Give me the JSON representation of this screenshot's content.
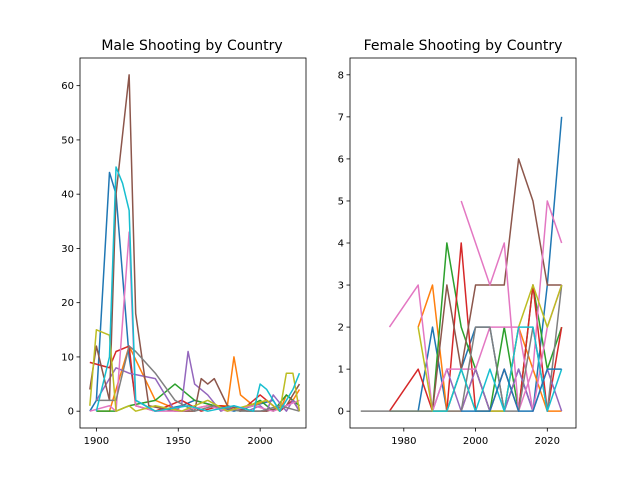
{
  "chart_data": [
    {
      "type": "line",
      "title": "Male Shooting by Country",
      "xlabel": "",
      "ylabel": "",
      "xlim": [
        1890,
        2028
      ],
      "ylim": [
        -3.1,
        65.1
      ],
      "xticks": [
        1900,
        1950,
        2000
      ],
      "yticks": [
        0,
        10,
        20,
        30,
        40,
        50,
        60
      ],
      "grid": false,
      "series": [
        {
          "color": "#1f77b4",
          "x": [
            1896,
            1900,
            1908,
            1912,
            1920,
            1924,
            1936,
            1952,
            1960,
            1972,
            1984,
            1996,
            2008,
            2012,
            2016,
            2020,
            2024
          ],
          "y": [
            0,
            2,
            44,
            40,
            10,
            2,
            0,
            1,
            2,
            1,
            0,
            1,
            2,
            0,
            1,
            2,
            1
          ]
        },
        {
          "color": "#ff7f0e",
          "x": [
            1900,
            1908,
            1920,
            1936,
            1952,
            1968,
            1980,
            1984,
            1988,
            1996,
            2004,
            2012,
            2016,
            2020,
            2024
          ],
          "y": [
            0,
            0,
            12,
            2,
            0,
            1,
            1,
            10,
            3,
            1,
            2,
            0,
            3,
            2,
            4
          ]
        },
        {
          "color": "#2ca02c",
          "x": [
            1900,
            1912,
            1920,
            1936,
            1948,
            1960,
            1972,
            1988,
            2000,
            2008,
            2016,
            2024
          ],
          "y": [
            0,
            0,
            1,
            2,
            5,
            2,
            1,
            0,
            2,
            0,
            3,
            1
          ]
        },
        {
          "color": "#d62728",
          "x": [
            1896,
            1908,
            1912,
            1920,
            1924,
            1936,
            1952,
            1964,
            1976,
            1988,
            2000,
            2012,
            2020,
            2024
          ],
          "y": [
            9,
            8,
            11,
            12,
            1,
            0,
            2,
            0,
            1,
            0,
            3,
            0,
            2,
            0
          ]
        },
        {
          "color": "#9467bd",
          "x": [
            1900,
            1912,
            1920,
            1936,
            1948,
            1952,
            1956,
            1960,
            1968,
            1976,
            1984,
            1992,
            2000,
            2004,
            2008,
            2016,
            2020,
            2024
          ],
          "y": [
            2,
            8,
            7,
            6,
            0,
            1,
            11,
            5,
            3,
            0,
            1,
            0,
            1,
            0,
            3,
            0,
            2,
            0
          ]
        },
        {
          "color": "#8c564b",
          "x": [
            1896,
            1900,
            1908,
            1912,
            1920,
            1924,
            1932,
            1948,
            1960,
            1964,
            1968,
            1972,
            1980,
            1992,
            2004,
            2016,
            2020,
            2024
          ],
          "y": [
            4,
            12,
            2,
            40,
            62,
            18,
            1,
            0,
            0,
            6,
            5,
            6,
            1,
            0,
            0,
            1,
            3,
            5
          ]
        },
        {
          "color": "#e377c2",
          "x": [
            1896,
            1908,
            1912,
            1920,
            1924,
            1936,
            1952,
            1968,
            1980,
            1996,
            2008,
            2024
          ],
          "y": [
            0,
            1,
            0,
            33,
            1,
            0,
            0,
            1,
            0,
            1,
            0,
            2
          ]
        },
        {
          "color": "#7f7f7f",
          "x": [
            1900,
            1912,
            1920,
            1924,
            1936,
            1948,
            1960,
            1972,
            1988,
            2000,
            2012,
            2024
          ],
          "y": [
            2,
            2,
            12,
            11,
            7,
            2,
            0,
            1,
            0,
            0,
            1,
            0
          ]
        },
        {
          "color": "#bcbd22",
          "x": [
            1896,
            1900,
            1908,
            1912,
            1920,
            1924,
            1936,
            1952,
            1968,
            1980,
            1992,
            2004,
            2012,
            2016,
            2020,
            2024
          ],
          "y": [
            1,
            15,
            14,
            0,
            1,
            0,
            1,
            0,
            2,
            0,
            1,
            2,
            0,
            7,
            7,
            0
          ]
        },
        {
          "color": "#17becf",
          "x": [
            1900,
            1908,
            1912,
            1916,
            1920,
            1924,
            1936,
            1956,
            1968,
            1984,
            1996,
            2000,
            2004,
            2012,
            2020,
            2024
          ],
          "y": [
            0,
            10,
            45,
            42,
            37,
            2,
            0,
            1,
            0,
            1,
            0,
            5,
            4,
            0,
            4,
            7
          ]
        }
      ]
    },
    {
      "type": "line",
      "title": "Female Shooting by Country",
      "xlabel": "",
      "ylabel": "",
      "xlim": [
        1965,
        2028
      ],
      "ylim": [
        -0.4,
        8.4
      ],
      "xticks": [
        1980,
        2000,
        2020
      ],
      "yticks": [
        0,
        1,
        2,
        3,
        4,
        5,
        6,
        7,
        8
      ],
      "grid": false,
      "series": [
        {
          "color": "#1f77b4",
          "x": [
            1984,
            1988,
            1992,
            2000,
            2004,
            2008,
            2012,
            2016,
            2020,
            2024
          ],
          "y": [
            0,
            2,
            0,
            2,
            2,
            0,
            1,
            0,
            3,
            7
          ]
        },
        {
          "color": "#ff7f0e",
          "x": [
            1984,
            1988,
            1992,
            1996,
            2000,
            2004,
            2008,
            2012,
            2016,
            2020,
            2024
          ],
          "y": [
            2,
            3,
            0,
            0,
            1,
            0,
            0,
            2,
            1,
            0,
            0
          ]
        },
        {
          "color": "#2ca02c",
          "x": [
            1976,
            1984,
            1988,
            1992,
            1996,
            2000,
            2004,
            2008,
            2012,
            2016,
            2020,
            2024
          ],
          "y": [
            0,
            0,
            0,
            4,
            2,
            1,
            0,
            2,
            0,
            3,
            1,
            2
          ]
        },
        {
          "color": "#d62728",
          "x": [
            1976,
            1984,
            1988,
            1992,
            1996,
            2000,
            2004,
            2008,
            2012,
            2016,
            2020,
            2024
          ],
          "y": [
            0,
            1,
            0,
            0,
            4,
            0,
            0,
            1,
            0,
            3,
            0,
            2
          ]
        },
        {
          "color": "#9467bd",
          "x": [
            1988,
            1992,
            1996,
            2000,
            2004,
            2008,
            2012,
            2016,
            2020,
            2024
          ],
          "y": [
            0,
            1,
            0,
            1,
            0,
            0,
            1,
            0,
            1,
            0
          ]
        },
        {
          "color": "#8c564b",
          "x": [
            1988,
            1992,
            1996,
            2000,
            2004,
            2008,
            2012,
            2016,
            2020,
            2024
          ],
          "y": [
            0,
            3,
            1,
            3,
            3,
            3,
            6,
            5,
            3,
            3
          ]
        },
        {
          "color": "#e377c2",
          "x": [
            1996,
            2000,
            2004,
            2008,
            2012,
            2016,
            2020,
            2024
          ],
          "y": [
            5,
            4,
            3,
            4,
            0,
            1,
            5,
            4
          ]
        },
        {
          "color": "#e377c2",
          "x": [
            1976,
            1984,
            1988,
            1992,
            1996,
            2000,
            2004,
            2008,
            2012,
            2016,
            2020,
            2024
          ],
          "y": [
            2,
            3,
            0,
            1,
            1,
            1,
            2,
            2,
            2,
            0,
            2,
            3
          ]
        },
        {
          "color": "#7f7f7f",
          "x": [
            1968,
            1976,
            1984,
            1988,
            1992,
            1996,
            2000,
            2004,
            2008,
            2012,
            2016,
            2020,
            2024
          ],
          "y": [
            0,
            0,
            0,
            0,
            0,
            0,
            2,
            2,
            0,
            0,
            2,
            0,
            3
          ]
        },
        {
          "color": "#bcbd22",
          "x": [
            1984,
            1988,
            1992,
            1996,
            2000,
            2004,
            2008,
            2012,
            2016,
            2020,
            2024
          ],
          "y": [
            2,
            0,
            0,
            1,
            0,
            0,
            0,
            2,
            3,
            2,
            3
          ]
        },
        {
          "color": "#17becf",
          "x": [
            1988,
            1992,
            1996,
            2000,
            2004,
            2008,
            2012,
            2016,
            2020,
            2024
          ],
          "y": [
            0,
            0,
            1,
            0,
            1,
            0,
            2,
            2,
            0,
            1
          ]
        },
        {
          "color": "#1f77b4",
          "x": [
            1996,
            2000,
            2004,
            2008,
            2012,
            2016,
            2020,
            2024
          ],
          "y": [
            0,
            0,
            0,
            1,
            0,
            0,
            1,
            1
          ]
        }
      ]
    }
  ]
}
